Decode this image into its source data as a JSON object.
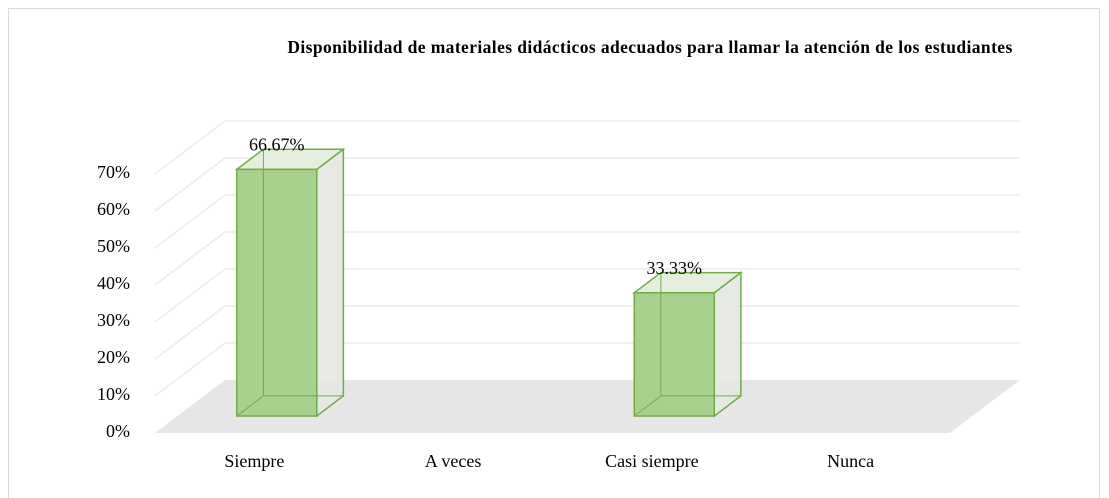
{
  "chart_data": {
    "type": "bar3d",
    "title": "Disponibilidad de materiales didácticos adecuados para llamar la atención de los estudiantes",
    "categories": [
      "Siempre",
      "A veces",
      "Casi siempre",
      "Nunca"
    ],
    "values": [
      66.67,
      0,
      33.33,
      0
    ],
    "value_labels": [
      "66.67%",
      null,
      "33.33%",
      null
    ],
    "color": "#a9d18e",
    "ylim": [
      0,
      70
    ],
    "yticks": [
      {
        "value": 0,
        "label": "0%"
      },
      {
        "value": 10,
        "label": "10%"
      },
      {
        "value": 20,
        "label": "20%"
      },
      {
        "value": 30,
        "label": "30%"
      },
      {
        "value": 40,
        "label": "40%"
      },
      {
        "value": 50,
        "label": "50%"
      },
      {
        "value": 60,
        "label": "60%"
      },
      {
        "value": 70,
        "label": "70%"
      }
    ],
    "grid": true
  }
}
